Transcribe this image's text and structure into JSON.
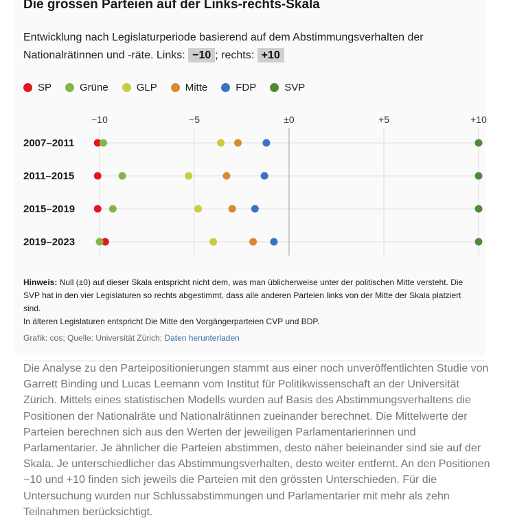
{
  "header": {
    "title": "Die grossen Parteien auf der Links-rechts-Skala",
    "subtitle_pre": "Entwicklung nach Legislaturperiode basierend auf dem Abstimmungsverhalten der Nationalrätinnen und -räte. Links: ",
    "left_badge": "−10",
    "subtitle_mid": "; rechts: ",
    "right_badge": "+10"
  },
  "legend": [
    {
      "label": "SP",
      "color": "#e3161e"
    },
    {
      "label": "Grüne",
      "color": "#84b547"
    },
    {
      "label": "GLP",
      "color": "#c9cc3f"
    },
    {
      "label": "Mitte",
      "color": "#d98a2f"
    },
    {
      "label": "FDP",
      "color": "#3a72c4"
    },
    {
      "label": "SVP",
      "color": "#4f8a3c"
    }
  ],
  "chart_data": {
    "type": "scatter",
    "x_ticks": [
      {
        "value": -10,
        "label": "−10"
      },
      {
        "value": -5,
        "label": "−5"
      },
      {
        "value": 0,
        "label": "±0"
      },
      {
        "value": 5,
        "label": "+5"
      },
      {
        "value": 10,
        "label": "+10"
      }
    ],
    "xlim": [
      -10,
      10
    ],
    "categories": [
      "2007–2011",
      "2011–2015",
      "2015–2019",
      "2019–2023"
    ],
    "series": [
      {
        "name": "SP",
        "color": "#e3161e",
        "values": [
          -10.1,
          -10.1,
          -10.1,
          -9.7
        ]
      },
      {
        "name": "Grüne",
        "color": "#84b547",
        "values": [
          -9.8,
          -8.8,
          -9.3,
          -10.0
        ]
      },
      {
        "name": "GLP",
        "color": "#c9cc3f",
        "values": [
          -3.6,
          -5.3,
          -4.8,
          -4.0
        ]
      },
      {
        "name": "Mitte",
        "color": "#d98a2f",
        "values": [
          -2.7,
          -3.3,
          -3.0,
          -1.9
        ]
      },
      {
        "name": "FDP",
        "color": "#3a72c4",
        "values": [
          -1.2,
          -1.3,
          -1.8,
          -0.8
        ]
      },
      {
        "name": "SVP",
        "color": "#4f8a3c",
        "values": [
          10.0,
          10.0,
          10.0,
          10.0
        ]
      }
    ]
  },
  "note": {
    "label": "Hinweis:",
    "text1": "Null (±0) auf dieser Skala entspricht nicht dem, was man üblicherweise unter der politischen Mitte versteht. Die SVP hat in den vier Legislaturen so rechts abgestimmt, dass alle anderen Parteien links von der Mitte der Skala platziert sind.",
    "text2": "In älteren Legislaturen entspricht Die Mitte den Vorgängerparteien CVP und BDP."
  },
  "source": {
    "text": "Grafik: cos; Quelle: Universität Zürich; ",
    "link": "Daten herunterladen"
  },
  "article": {
    "paragraph": "Die Analyse zu den Parteipositionierungen stammt aus einer noch unveröffentlichten Studie von Garrett Binding und Lucas Leemann vom Institut für Politikwissenschaft an der Universität Zürich. Mittels eines statistischen Modells wurden auf Basis des Abstimmungsverhaltens die Positionen der Nationalräte und Nationalrätinnen zueinander berechnet. Die Mittelwerte der Parteien berechnen sich aus den Werten der jeweiligen Parlamentarierinnen und Parlamentarier. Je ähnlicher die Parteien abstimmen, desto näher beieinander sind sie auf der Skala. Je unterschiedlicher das Abstimmungsverhalten, desto weiter entfernt. An den Positionen −10 und +10 finden sich jeweils die Parteien mit den grössten Unterschieden. Für die Untersuchung wurden nur Schlussabstimmungen und Parlamentarier mit mehr als zehn Teilnahmen berücksichtigt."
  }
}
